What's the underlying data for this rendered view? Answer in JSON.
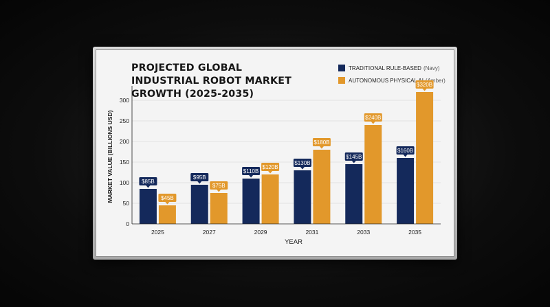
{
  "colors": {
    "traditional": "#14295b",
    "autonomous": "#e2982b"
  },
  "chart_data": {
    "type": "bar",
    "title": "PROJECTED GLOBAL INDUSTRIAL ROBOT MARKET GROWTH (2025-2035)",
    "xlabel": "YEAR",
    "ylabel": "MARKET VALUE (BILLIONS USD)",
    "categories": [
      "2025",
      "2027",
      "2029",
      "2031",
      "2033",
      "2035"
    ],
    "ylim": [
      0,
      330
    ],
    "yticks": [
      0,
      50,
      100,
      150,
      200,
      250,
      300
    ],
    "grid": true,
    "legend_position": "top-right",
    "series": [
      {
        "name": "TRADITIONAL RULE-BASED",
        "hint": "(Navy)",
        "values": [
          85,
          95,
          110,
          130,
          145,
          160
        ],
        "labels": [
          "$85B",
          "$95B",
          "$110B",
          "$130B",
          "$145B",
          "$160B"
        ]
      },
      {
        "name": "AUTONOMOUS PHYSICAL AI",
        "hint": "(Amber)",
        "values": [
          45,
          75,
          120,
          180,
          240,
          320
        ],
        "labels": [
          "$45B",
          "$75B",
          "$120B",
          "$180B",
          "$240B",
          "$320B"
        ]
      }
    ]
  }
}
